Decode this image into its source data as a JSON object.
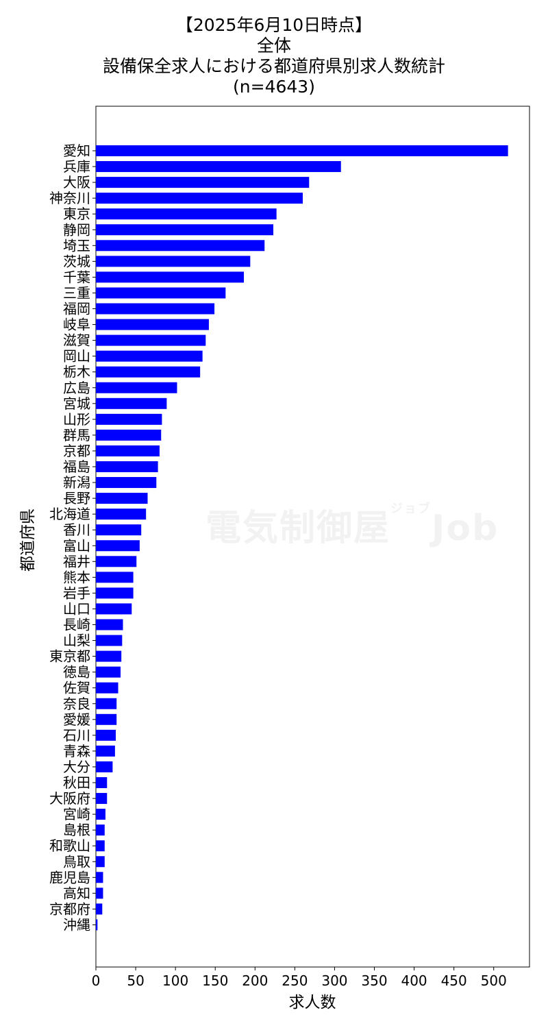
{
  "title_lines": [
    "【2025年6月10日時点】",
    "全体",
    "設備保全求人における都道府県別求人数統計",
    "(n=4643)"
  ],
  "watermark": {
    "main": "電気制御屋",
    "sub": "ジョブ",
    "job": "Job"
  },
  "chart_data": {
    "type": "bar",
    "orientation": "horizontal",
    "xlabel": "求人数",
    "ylabel": "都道府県",
    "xlim": [
      0,
      545
    ],
    "xticks": [
      0,
      50,
      100,
      150,
      200,
      250,
      300,
      350,
      400,
      450,
      500
    ],
    "grid": false,
    "bar_color": "#0000ff",
    "categories": [
      "愛知",
      "兵庫",
      "大阪",
      "神奈川",
      "東京",
      "静岡",
      "埼玉",
      "茨城",
      "千葉",
      "三重",
      "福岡",
      "岐阜",
      "滋賀",
      "岡山",
      "栃木",
      "広島",
      "宮城",
      "山形",
      "群馬",
      "京都",
      "福島",
      "新潟",
      "長野",
      "北海道",
      "香川",
      "富山",
      "福井",
      "熊本",
      "岩手",
      "山口",
      "長崎",
      "山梨",
      "東京都",
      "徳島",
      "佐賀",
      "奈良",
      "愛媛",
      "石川",
      "青森",
      "大分",
      "秋田",
      "大阪府",
      "宮崎",
      "島根",
      "和歌山",
      "鳥取",
      "鹿児島",
      "高知",
      "京都府",
      "沖縄"
    ],
    "values": [
      518,
      308,
      268,
      260,
      227,
      223,
      212,
      194,
      186,
      163,
      149,
      142,
      138,
      134,
      131,
      102,
      89,
      83,
      82,
      80,
      78,
      76,
      65,
      63,
      57,
      55,
      51,
      47,
      47,
      45,
      34,
      33,
      32,
      31,
      28,
      26,
      26,
      25,
      24,
      21,
      14,
      14,
      12,
      11,
      11,
      11,
      9,
      9,
      8,
      2
    ]
  }
}
